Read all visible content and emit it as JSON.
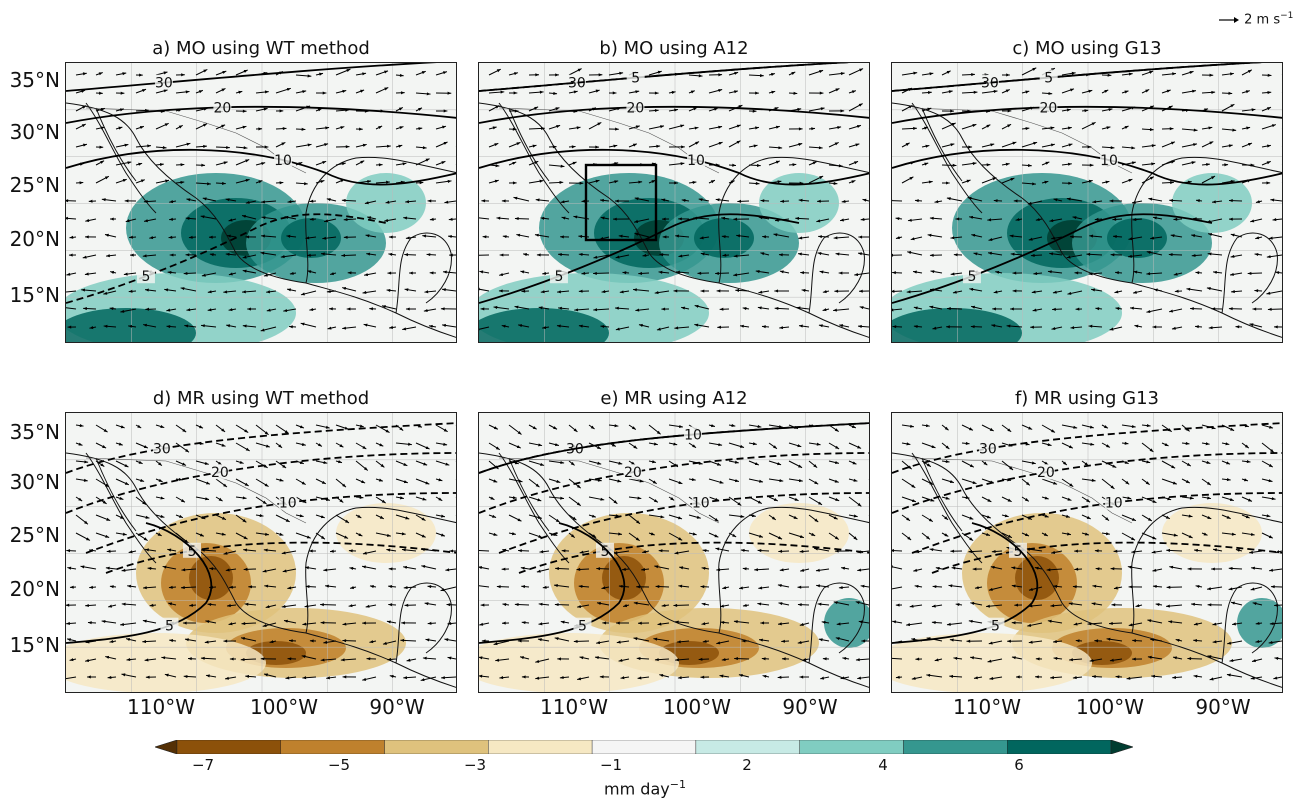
{
  "reference_vector": {
    "label": "2 m s",
    "exponent": "−1"
  },
  "panels": [
    {
      "title": "a) MO using WT method",
      "type": "MO",
      "contours": [
        {
          "label": "30",
          "dashed": false
        },
        {
          "label": "20",
          "dashed": false
        },
        {
          "label": "10",
          "dashed": false
        },
        {
          "label": "5",
          "dashed": true
        }
      ]
    },
    {
      "title": "b) MO using A12",
      "type": "MO",
      "box": true,
      "contours": [
        {
          "label": "30",
          "dashed": false
        },
        {
          "label": "20",
          "dashed": false
        },
        {
          "label": "10",
          "dashed": false
        },
        {
          "label": "5",
          "dashed": false
        },
        {
          "label": "5",
          "dashed": true
        }
      ]
    },
    {
      "title": "c) MO using G13",
      "type": "MO",
      "contours": [
        {
          "label": "30",
          "dashed": false
        },
        {
          "label": "20",
          "dashed": false
        },
        {
          "label": "10",
          "dashed": false
        },
        {
          "label": "5",
          "dashed": false
        },
        {
          "label": "5",
          "dashed": true
        }
      ]
    },
    {
      "title": "d) MR using WT method",
      "type": "MR",
      "contours": [
        {
          "label": "30",
          "dashed": true
        },
        {
          "label": "20",
          "dashed": true
        },
        {
          "label": "10",
          "dashed": true
        },
        {
          "label": "5",
          "dashed": true
        },
        {
          "label": "5",
          "dashed": false
        }
      ]
    },
    {
      "title": "e) MR using A12",
      "type": "MR",
      "contours": [
        {
          "label": "30",
          "dashed": true
        },
        {
          "label": "20",
          "dashed": true
        },
        {
          "label": "10",
          "dashed": true
        },
        {
          "label": "5",
          "dashed": true
        },
        {
          "label": "5",
          "dashed": false
        },
        {
          "label": "10",
          "dashed": false
        }
      ]
    },
    {
      "title": "f) MR using G13",
      "type": "MR",
      "contours": [
        {
          "label": "30",
          "dashed": true
        },
        {
          "label": "20",
          "dashed": true
        },
        {
          "label": "10",
          "dashed": true
        },
        {
          "label": "5",
          "dashed": true
        },
        {
          "label": "5",
          "dashed": false
        }
      ]
    }
  ],
  "lat_labels": [
    "35°N",
    "30°N",
    "25°N",
    "20°N",
    "15°N"
  ],
  "lon_labels": [
    "110°W",
    "100°W",
    "90°W"
  ],
  "colorbar": {
    "ticks": [
      "−7",
      "−5",
      "−3",
      "−1",
      "2",
      "4",
      "6"
    ],
    "label": "mm day",
    "label_exponent": "−1",
    "colors": [
      "#543005",
      "#8c510a",
      "#bf812d",
      "#dfc27d",
      "#f6e8c3",
      "#f5f5f5",
      "#c7eae5",
      "#80cdc1",
      "#35978f",
      "#01665e",
      "#003c30"
    ]
  }
}
